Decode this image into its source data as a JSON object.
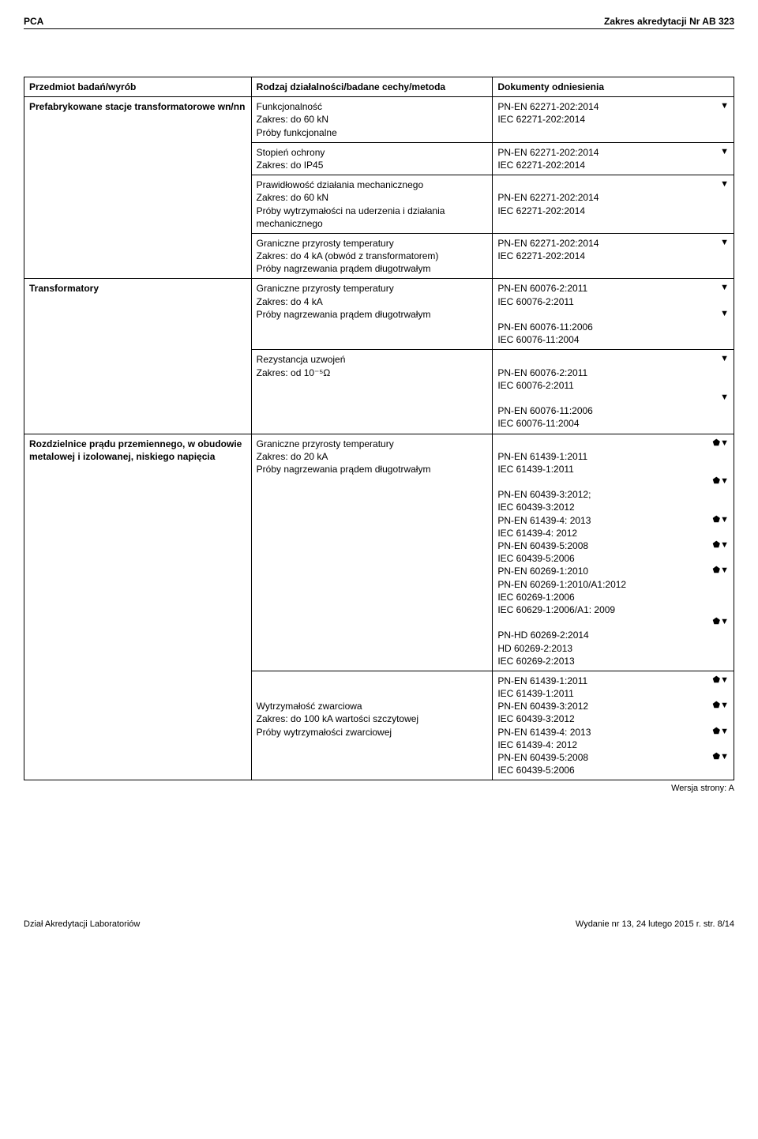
{
  "header": {
    "left": "PCA",
    "right": "Zakres akredytacji Nr AB 323"
  },
  "table": {
    "head": {
      "c1": "Przedmiot badań/wyrób",
      "c2": "Rodzaj działalności/badane cechy/metoda",
      "c3": "Dokumenty odniesienia"
    },
    "r1": {
      "c1": "Prefabrykowane stacje transformatorowe wn/nn",
      "c2": "Funkcjonalność\nZakres: do 60 kN\nPróby funkcjonalne",
      "c3": "PN-EN 62271-202:2014\nIEC 62271-202:2014",
      "sym": "▼"
    },
    "r2": {
      "c2": "Stopień ochrony\nZakres: do IP45",
      "c3": "PN-EN 62271-202:2014\nIEC 62271-202:2014",
      "sym": "▼"
    },
    "r3": {
      "c2": "Prawidłowość działania mechanicznego\nZakres: do 60 kN\nPróby wytrzymałości na uderzenia i działania mechanicznego",
      "c3": "\nPN-EN 62271-202:2014\nIEC 62271-202:2014",
      "sym": "▼"
    },
    "r4": {
      "c2": "Graniczne przyrosty temperatury\nZakres: do 4 kA (obwód z transformatorem)\nPróby nagrzewania prądem długotrwałym",
      "c3": "PN-EN 62271-202:2014\nIEC 62271-202:2014",
      "sym": "▼"
    },
    "r5": {
      "c1": "Transformatory",
      "c2": "Graniczne przyrosty temperatury\nZakres: do 4 kA\nPróby nagrzewania prądem długotrwałym",
      "c3a": "PN-EN 60076-2:2011\nIEC 60076-2:2011",
      "syma": "▼",
      "c3b": "\nPN-EN 60076-11:2006\nIEC 60076-11:2004",
      "symb": "▼"
    },
    "r6": {
      "c2": "Rezystancja uzwojeń\nZakres: od 10⁻⁵Ω",
      "c3a": "\nPN-EN 60076-2:2011\nIEC 60076-2:2011",
      "syma": "▼",
      "c3b": "\nPN-EN 60076-11:2006\nIEC 60076-11:2004",
      "symb": "▼"
    },
    "r7": {
      "c1": "Rozdzielnice prądu przemiennego, w obudowie metalowej i izolowanej, niskiego napięcia",
      "c2": "Graniczne przyrosty temperatury\nZakres: do 20 kA\nPróby nagrzewania prądem długotrwałym",
      "blocks": [
        {
          "txt": "\nPN-EN 61439-1:2011\nIEC 61439-1:2011",
          "sym": "⬟▼"
        },
        {
          "txt": "\nPN-EN 60439-3:2012;\nIEC 60439-3:2012",
          "sym": "⬟▼"
        },
        {
          "txt": "PN-EN 61439-4: 2013\nIEC 61439-4: 2012",
          "sym": "⬟▼"
        },
        {
          "txt": "PN-EN 60439-5:2008\nIEC 60439-5:2006",
          "sym": "⬟▼"
        },
        {
          "txt": "PN-EN 60269-1:2010\nPN-EN 60269-1:2010/A1:2012\nIEC 60269-1:2006\nIEC 60629-1:2006/A1: 2009",
          "sym": "⬟▼"
        },
        {
          "txt": "\nPN-HD 60269-2:2014\nHD 60269-2:2013\nIEC 60269-2:2013",
          "sym": "⬟▼"
        }
      ]
    },
    "r8": {
      "c2": "\n\nWytrzymałość zwarciowa\nZakres: do 100 kA wartości szczytowej\nPróby wytrzymałości zwarciowej",
      "blocks": [
        {
          "txt": "PN-EN 61439-1:2011\nIEC 61439-1:2011",
          "sym": "⬟▼"
        },
        {
          "txt": "PN-EN 60439-3:2012\nIEC 60439-3:2012",
          "sym": "⬟▼"
        },
        {
          "txt": "PN-EN 61439-4: 2013\nIEC 61439-4: 2012",
          "sym": "⬟▼"
        },
        {
          "txt": "PN-EN 60439-5:2008\nIEC 60439-5:2006",
          "sym": "⬟▼"
        }
      ]
    }
  },
  "version": "Wersja strony: A",
  "footer": {
    "left": "Dział Akredytacji Laboratoriów",
    "right": "Wydanie nr 13, 24 lutego 2015 r.    str. 8/14"
  }
}
